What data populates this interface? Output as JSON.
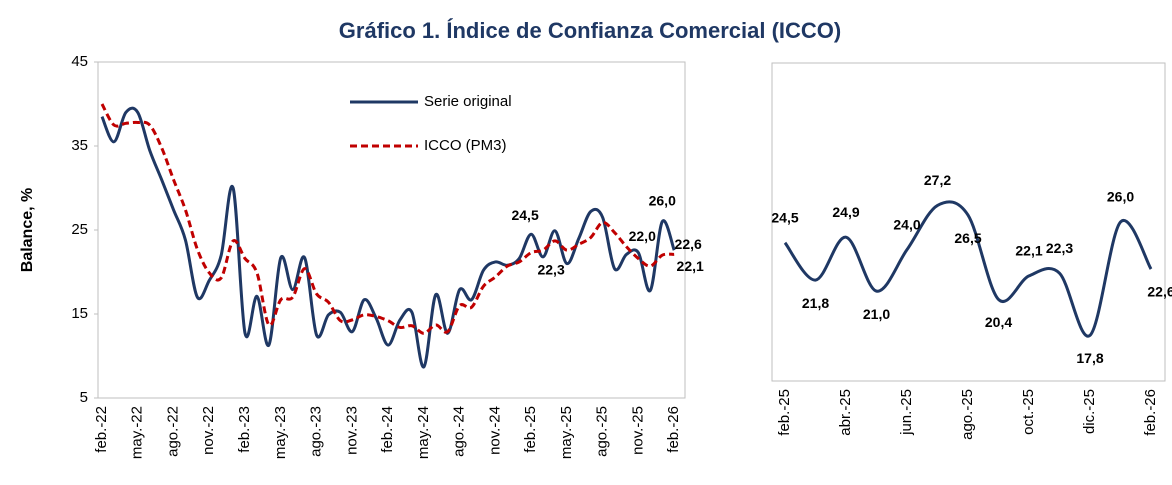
{
  "title": "Gráfico 1. Índice de Confianza Comercial (ICCO)",
  "chart_data": [
    {
      "type": "line",
      "y_label": "Balance, %",
      "ylim": [
        5,
        45
      ],
      "yticks": [
        5,
        15,
        25,
        35,
        45
      ],
      "legend": "top",
      "categories": [
        "feb.-22",
        null,
        null,
        "may.-22",
        null,
        null,
        "ago.-22",
        null,
        null,
        "nov.-22",
        null,
        null,
        "feb.-23",
        null,
        null,
        "may.-23",
        null,
        null,
        "ago.-23",
        null,
        null,
        "nov.-23",
        null,
        null,
        "feb.-24",
        null,
        null,
        "may.-24",
        null,
        null,
        "ago.-24",
        null,
        null,
        "nov.-24",
        null,
        null,
        "feb.-25",
        null,
        null,
        "may.-25",
        null,
        null,
        "ago.-25",
        null,
        null,
        "nov.-25",
        null,
        null,
        "feb.-26"
      ],
      "series": [
        {
          "name": "Serie original",
          "color": "#1f3864",
          "dash": false,
          "values": [
            38.5,
            35.5,
            39,
            39,
            34.5,
            31,
            27.4,
            23.8,
            17,
            19,
            22,
            30,
            12.7,
            17.1,
            11.3,
            21.7,
            17.9,
            21.7,
            12.5,
            14.9,
            15.2,
            12.9,
            16.7,
            14.5,
            11.3,
            14.3,
            15.2,
            8.7,
            17.3,
            12.7,
            17.9,
            16.7,
            20.2,
            21.2,
            20.8,
            21.6,
            24.5,
            21.8,
            24.9,
            21.0,
            24.0,
            27.2,
            26.5,
            20.4,
            22.1,
            22.3,
            17.8,
            26.0,
            22.6
          ],
          "value_labels": [
            null,
            null,
            null,
            null,
            null,
            null,
            null,
            null,
            null,
            null,
            null,
            null,
            null,
            null,
            null,
            null,
            null,
            null,
            null,
            null,
            null,
            null,
            null,
            null,
            null,
            null,
            null,
            null,
            null,
            null,
            null,
            null,
            null,
            null,
            null,
            null,
            "24,5",
            null,
            null,
            null,
            null,
            null,
            null,
            null,
            null,
            null,
            null,
            "26,0",
            "22,6"
          ]
        },
        {
          "name": "ICCO (PM3)",
          "color": "#c00000",
          "dash": true,
          "values": [
            40,
            37.5,
            37.7,
            37.8,
            37.5,
            34.8,
            31.0,
            27.4,
            22.7,
            19.9,
            19.3,
            23.7,
            21.6,
            19.9,
            13.7,
            16.7,
            17.0,
            20.4,
            17.4,
            16.4,
            14.2,
            14.3,
            14.9,
            14.7,
            14.2,
            13.4,
            13.6,
            12.7,
            13.7,
            12.9,
            16.0,
            15.8,
            18.3,
            19.4,
            20.7,
            21.2,
            22.3,
            22.6,
            23.7,
            22.6,
            23.3,
            24.1,
            25.9,
            24.7,
            23.0,
            21.6,
            20.7,
            22.0,
            22.1
          ],
          "value_labels": [
            null,
            null,
            null,
            null,
            null,
            null,
            null,
            null,
            null,
            null,
            null,
            null,
            null,
            null,
            null,
            null,
            null,
            null,
            null,
            null,
            null,
            null,
            null,
            null,
            null,
            null,
            null,
            null,
            null,
            null,
            null,
            null,
            null,
            null,
            null,
            null,
            "22,3",
            null,
            null,
            null,
            null,
            null,
            null,
            null,
            null,
            null,
            null,
            "22,0",
            "22,1"
          ]
        }
      ]
    },
    {
      "type": "line",
      "ylim": [
        14.5,
        37.5
      ],
      "color": "#1f3864",
      "categories": [
        "feb.-25",
        null,
        "abr.-25",
        null,
        "jun.-25",
        null,
        "ago.-25",
        null,
        "oct.-25",
        null,
        "dic.-25",
        null,
        "feb.-26"
      ],
      "values": [
        24.5,
        21.8,
        24.9,
        21.0,
        24.0,
        27.2,
        26.5,
        20.4,
        22.1,
        22.3,
        17.8,
        26.0,
        22.6
      ],
      "value_labels": [
        "24,5",
        "21,8",
        "24,9",
        "21,0",
        "24,0",
        "27,2",
        "26,5",
        "20,4",
        "22,1",
        "22,3",
        "17,8",
        "26,0",
        "22,6"
      ]
    }
  ]
}
